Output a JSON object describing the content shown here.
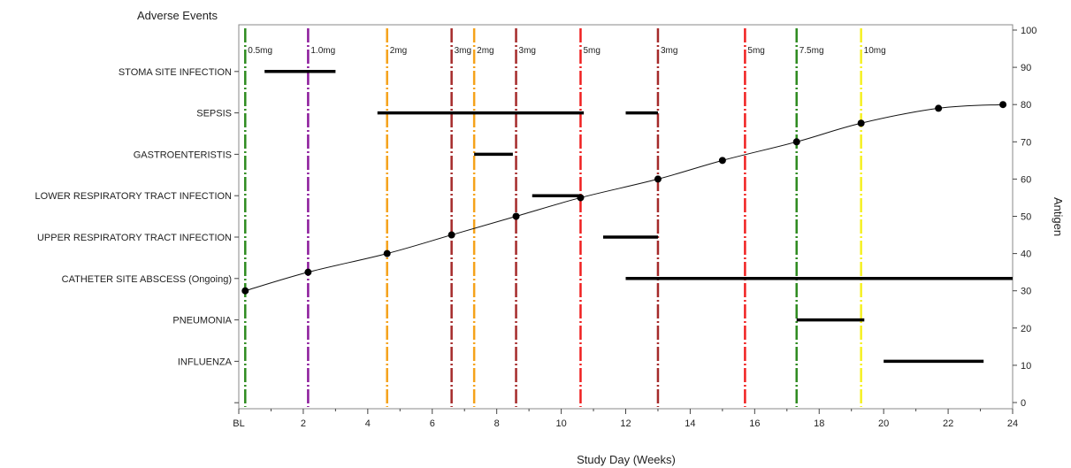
{
  "chart_data": {
    "type": "line",
    "title": "Adverse Events",
    "xlabel": "Study Day (Weeks)",
    "ylabel": "Antigen",
    "xlim": [
      0,
      24
    ],
    "ylim": [
      0,
      100
    ],
    "x_ticks": [
      {
        "value": 0,
        "label": "BL"
      },
      {
        "value": 2,
        "label": "2"
      },
      {
        "value": 4,
        "label": "4"
      },
      {
        "value": 6,
        "label": "6"
      },
      {
        "value": 8,
        "label": "8"
      },
      {
        "value": 10,
        "label": "10"
      },
      {
        "value": 12,
        "label": "12"
      },
      {
        "value": 14,
        "label": "14"
      },
      {
        "value": 16,
        "label": "16"
      },
      {
        "value": 18,
        "label": "18"
      },
      {
        "value": 20,
        "label": "20"
      },
      {
        "value": 22,
        "label": "22"
      },
      {
        "value": 24,
        "label": "24"
      }
    ],
    "y_ticks": [
      0,
      10,
      20,
      30,
      40,
      50,
      60,
      70,
      80,
      90,
      100
    ],
    "adverse_events": [
      "STOMA SITE INFECTION",
      "SEPSIS",
      "GASTROENTERISTIS",
      "LOWER RESPIRATORY TRACT INFECTION",
      "UPPER RESPIRATORY TRACT INFECTION",
      "CATHETER SITE ABSCESS (Ongoing)",
      "PNEUMONIA",
      "INFLUENZA"
    ],
    "ae_bars": [
      {
        "event": "STOMA SITE INFECTION",
        "start": 0.8,
        "end": 3.0
      },
      {
        "event": "SEPSIS",
        "start": 4.3,
        "end": 10.7
      },
      {
        "event": "SEPSIS",
        "start": 12.0,
        "end": 13.0
      },
      {
        "event": "GASTROENTERISTIS",
        "start": 7.3,
        "end": 8.5
      },
      {
        "event": "LOWER RESPIRATORY TRACT INFECTION",
        "start": 9.1,
        "end": 10.6
      },
      {
        "event": "UPPER RESPIRATORY TRACT INFECTION",
        "start": 11.3,
        "end": 13.0
      },
      {
        "event": "CATHETER SITE ABSCESS (Ongoing)",
        "start": 12.0,
        "end": 24.0
      },
      {
        "event": "PNEUMONIA",
        "start": 17.3,
        "end": 19.4
      },
      {
        "event": "INFLUENZA",
        "start": 20.0,
        "end": 23.1
      }
    ],
    "doses": [
      {
        "x": 0.2,
        "label": "0.5mg",
        "color": "#2e8b20"
      },
      {
        "x": 2.15,
        "label": "1.0mg",
        "color": "#8b1a9a"
      },
      {
        "x": 4.6,
        "label": "2mg",
        "color": "#f5a21a"
      },
      {
        "x": 6.6,
        "label": "3mg",
        "color": "#a52a2a"
      },
      {
        "x": 7.3,
        "label": "2mg",
        "color": "#f5a21a"
      },
      {
        "x": 8.6,
        "label": "3mg",
        "color": "#a52a2a"
      },
      {
        "x": 10.6,
        "label": "5mg",
        "color": "#f02020"
      },
      {
        "x": 13.0,
        "label": "3mg",
        "color": "#a52a2a"
      },
      {
        "x": 15.7,
        "label": "5mg",
        "color": "#f02020"
      },
      {
        "x": 17.3,
        "label": "7.5mg",
        "color": "#2e8b20"
      },
      {
        "x": 19.3,
        "label": "10mg",
        "color": "#f5f020"
      }
    ],
    "series": [
      {
        "values": [
          {
            "x": 0.2,
            "y": 30
          },
          {
            "x": 2.15,
            "y": 35
          },
          {
            "x": 4.6,
            "y": 40
          },
          {
            "x": 6.6,
            "y": 45
          },
          {
            "x": 8.6,
            "y": 50
          },
          {
            "x": 10.6,
            "y": 55
          },
          {
            "x": 13.0,
            "y": 60
          },
          {
            "x": 15.0,
            "y": 65
          },
          {
            "x": 17.3,
            "y": 70
          },
          {
            "x": 19.3,
            "y": 75
          },
          {
            "x": 21.7,
            "y": 79
          },
          {
            "x": 23.7,
            "y": 80
          }
        ]
      }
    ],
    "grid": false,
    "legend": "none"
  }
}
